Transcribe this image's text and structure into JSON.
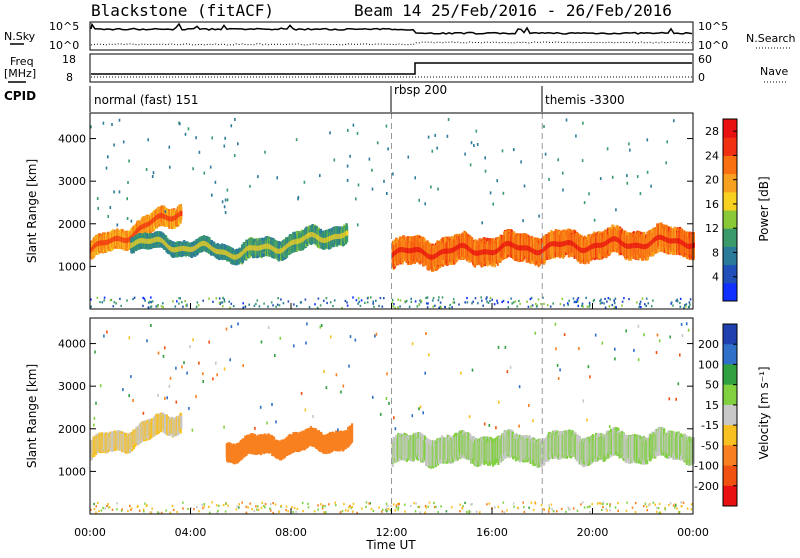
{
  "header": {
    "station": "Blackstone (fitACF)",
    "beam_date": "Beam 14  25/Feb/2016 - 26/Feb/2016"
  },
  "side_labels": {
    "nsky": "N.Sky",
    "nsearch": "N.Search",
    "freq_line1": "Freq",
    "freq_line2": "[MHz]",
    "nave": "Nave",
    "cpid": "CPID"
  },
  "top_axis": {
    "nsky_ticks": [
      "10^5",
      "10^0"
    ],
    "nsearch_ticks": [
      "10^5",
      "10^0"
    ],
    "freq_ticks": [
      "18",
      "8"
    ],
    "nave_ticks": [
      "60",
      "0"
    ]
  },
  "cpid_segments": [
    {
      "label": "normal (fast) 151",
      "start_hour": 0
    },
    {
      "label": "rbsp 200",
      "start_hour": 12
    },
    {
      "label": "themis -3300",
      "start_hour": 18
    }
  ],
  "chart_data": [
    {
      "type": "heatmap",
      "title": "",
      "xlabel": "Time UT",
      "ylabel": "Slant Range [km]",
      "xlim": [
        0,
        24
      ],
      "ylim": [
        0,
        4600
      ],
      "x_ticks": [
        "00:00",
        "04:00",
        "08:00",
        "12:00",
        "16:00",
        "20:00",
        "00:00"
      ],
      "y_ticks": [
        1000,
        2000,
        3000,
        4000
      ],
      "colorbar": {
        "label": "Power [dB]",
        "ticks": [
          4,
          8,
          12,
          16,
          20,
          24,
          28
        ],
        "range": [
          0,
          30
        ],
        "colors": [
          "#1030ff",
          "#2050b8",
          "#2c7a9a",
          "#3a9a6a",
          "#8ac838",
          "#f8d020",
          "#f8a020",
          "#f87010",
          "#f03010",
          "#e81010"
        ]
      },
      "scatter_bands": [
        {
          "t_start": 0.0,
          "t_end": 3.6,
          "range_center_start": 1350,
          "range_center_end": 2300,
          "width": 500,
          "power": 20
        },
        {
          "t_start": 1.6,
          "t_end": 6.2,
          "range_center_start": 1600,
          "range_center_end": 1300,
          "width": 400,
          "power": 9
        },
        {
          "t_start": 6.0,
          "t_end": 10.2,
          "range_center_start": 1300,
          "range_center_end": 1800,
          "width": 500,
          "power": 10
        },
        {
          "t_start": 12.0,
          "t_end": 24.0,
          "range_center_start": 1300,
          "range_center_end": 1600,
          "width": 700,
          "power": 22
        }
      ]
    },
    {
      "type": "heatmap",
      "title": "",
      "xlabel": "Time UT",
      "ylabel": "Slant Range [km]",
      "xlim": [
        0,
        24
      ],
      "ylim": [
        0,
        4600
      ],
      "x_ticks": [
        "00:00",
        "04:00",
        "08:00",
        "12:00",
        "16:00",
        "20:00",
        "00:00"
      ],
      "y_ticks": [
        1000,
        2000,
        3000,
        4000
      ],
      "colorbar": {
        "label": "Velocity [m s⁻¹]",
        "ticks": [
          200,
          100,
          50,
          15,
          -15,
          -50,
          -100,
          -200
        ],
        "colors": [
          "#2040b0",
          "#3070c8",
          "#30a040",
          "#80d040",
          "#c8c8c8",
          "#f8c020",
          "#f88020",
          "#f05010",
          "#e81010"
        ]
      },
      "scatter_bands": [
        {
          "t_start": 0.0,
          "t_end": 3.6,
          "range_center_start": 1500,
          "range_center_end": 2200,
          "width": 500,
          "velocity": -15
        },
        {
          "t_start": 5.4,
          "t_end": 10.4,
          "range_center_start": 1500,
          "range_center_end": 1800,
          "width": 500,
          "velocity": -60
        },
        {
          "t_start": 12.0,
          "t_end": 24.0,
          "range_center_start": 1500,
          "range_center_end": 1600,
          "width": 700,
          "velocity": 0
        }
      ]
    }
  ]
}
